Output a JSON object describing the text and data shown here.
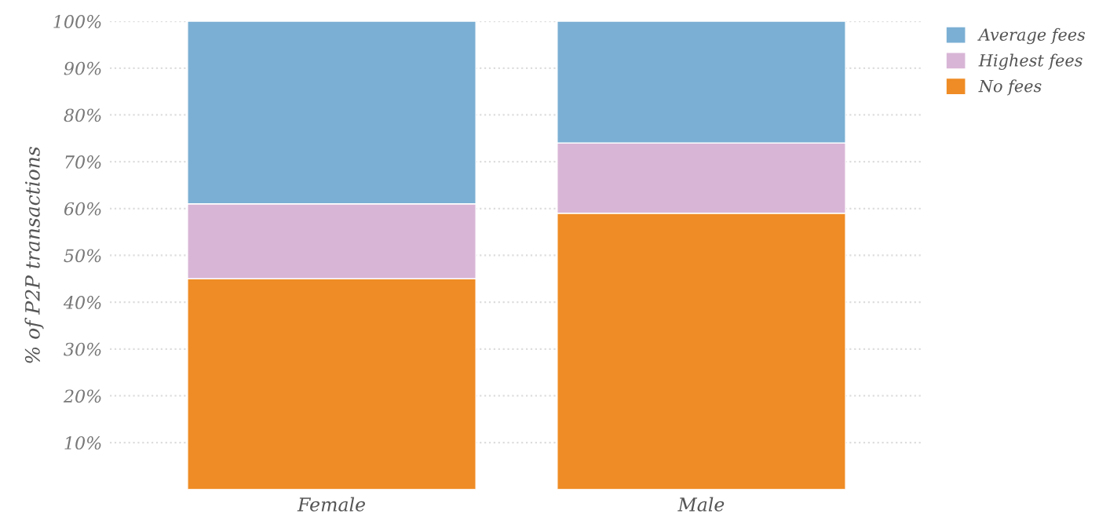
{
  "chart_data": {
    "type": "bar",
    "stacked": true,
    "ylabel": "% of P2P transactions",
    "categories": [
      "Female",
      "Male"
    ],
    "series": [
      {
        "name": "No fees",
        "color": "#ef8c25",
        "values": [
          45,
          59
        ]
      },
      {
        "name": "Highest fees",
        "color": "#d8b5d6",
        "values": [
          16,
          15
        ]
      },
      {
        "name": "Average fees",
        "color": "#7bafd3",
        "values": [
          39,
          26
        ]
      }
    ],
    "ylim": [
      0,
      100
    ],
    "yticks": [
      {
        "value": 10,
        "label": "10%"
      },
      {
        "value": 20,
        "label": "20%"
      },
      {
        "value": 30,
        "label": "30%"
      },
      {
        "value": 40,
        "label": "40%"
      },
      {
        "value": 50,
        "label": "50%"
      },
      {
        "value": 60,
        "label": "60%"
      },
      {
        "value": 70,
        "label": "70%"
      },
      {
        "value": 80,
        "label": "80%"
      },
      {
        "value": 90,
        "label": "90%"
      },
      {
        "value": 100,
        "label": "100%"
      }
    ],
    "grid": "y",
    "legend": "top right"
  }
}
